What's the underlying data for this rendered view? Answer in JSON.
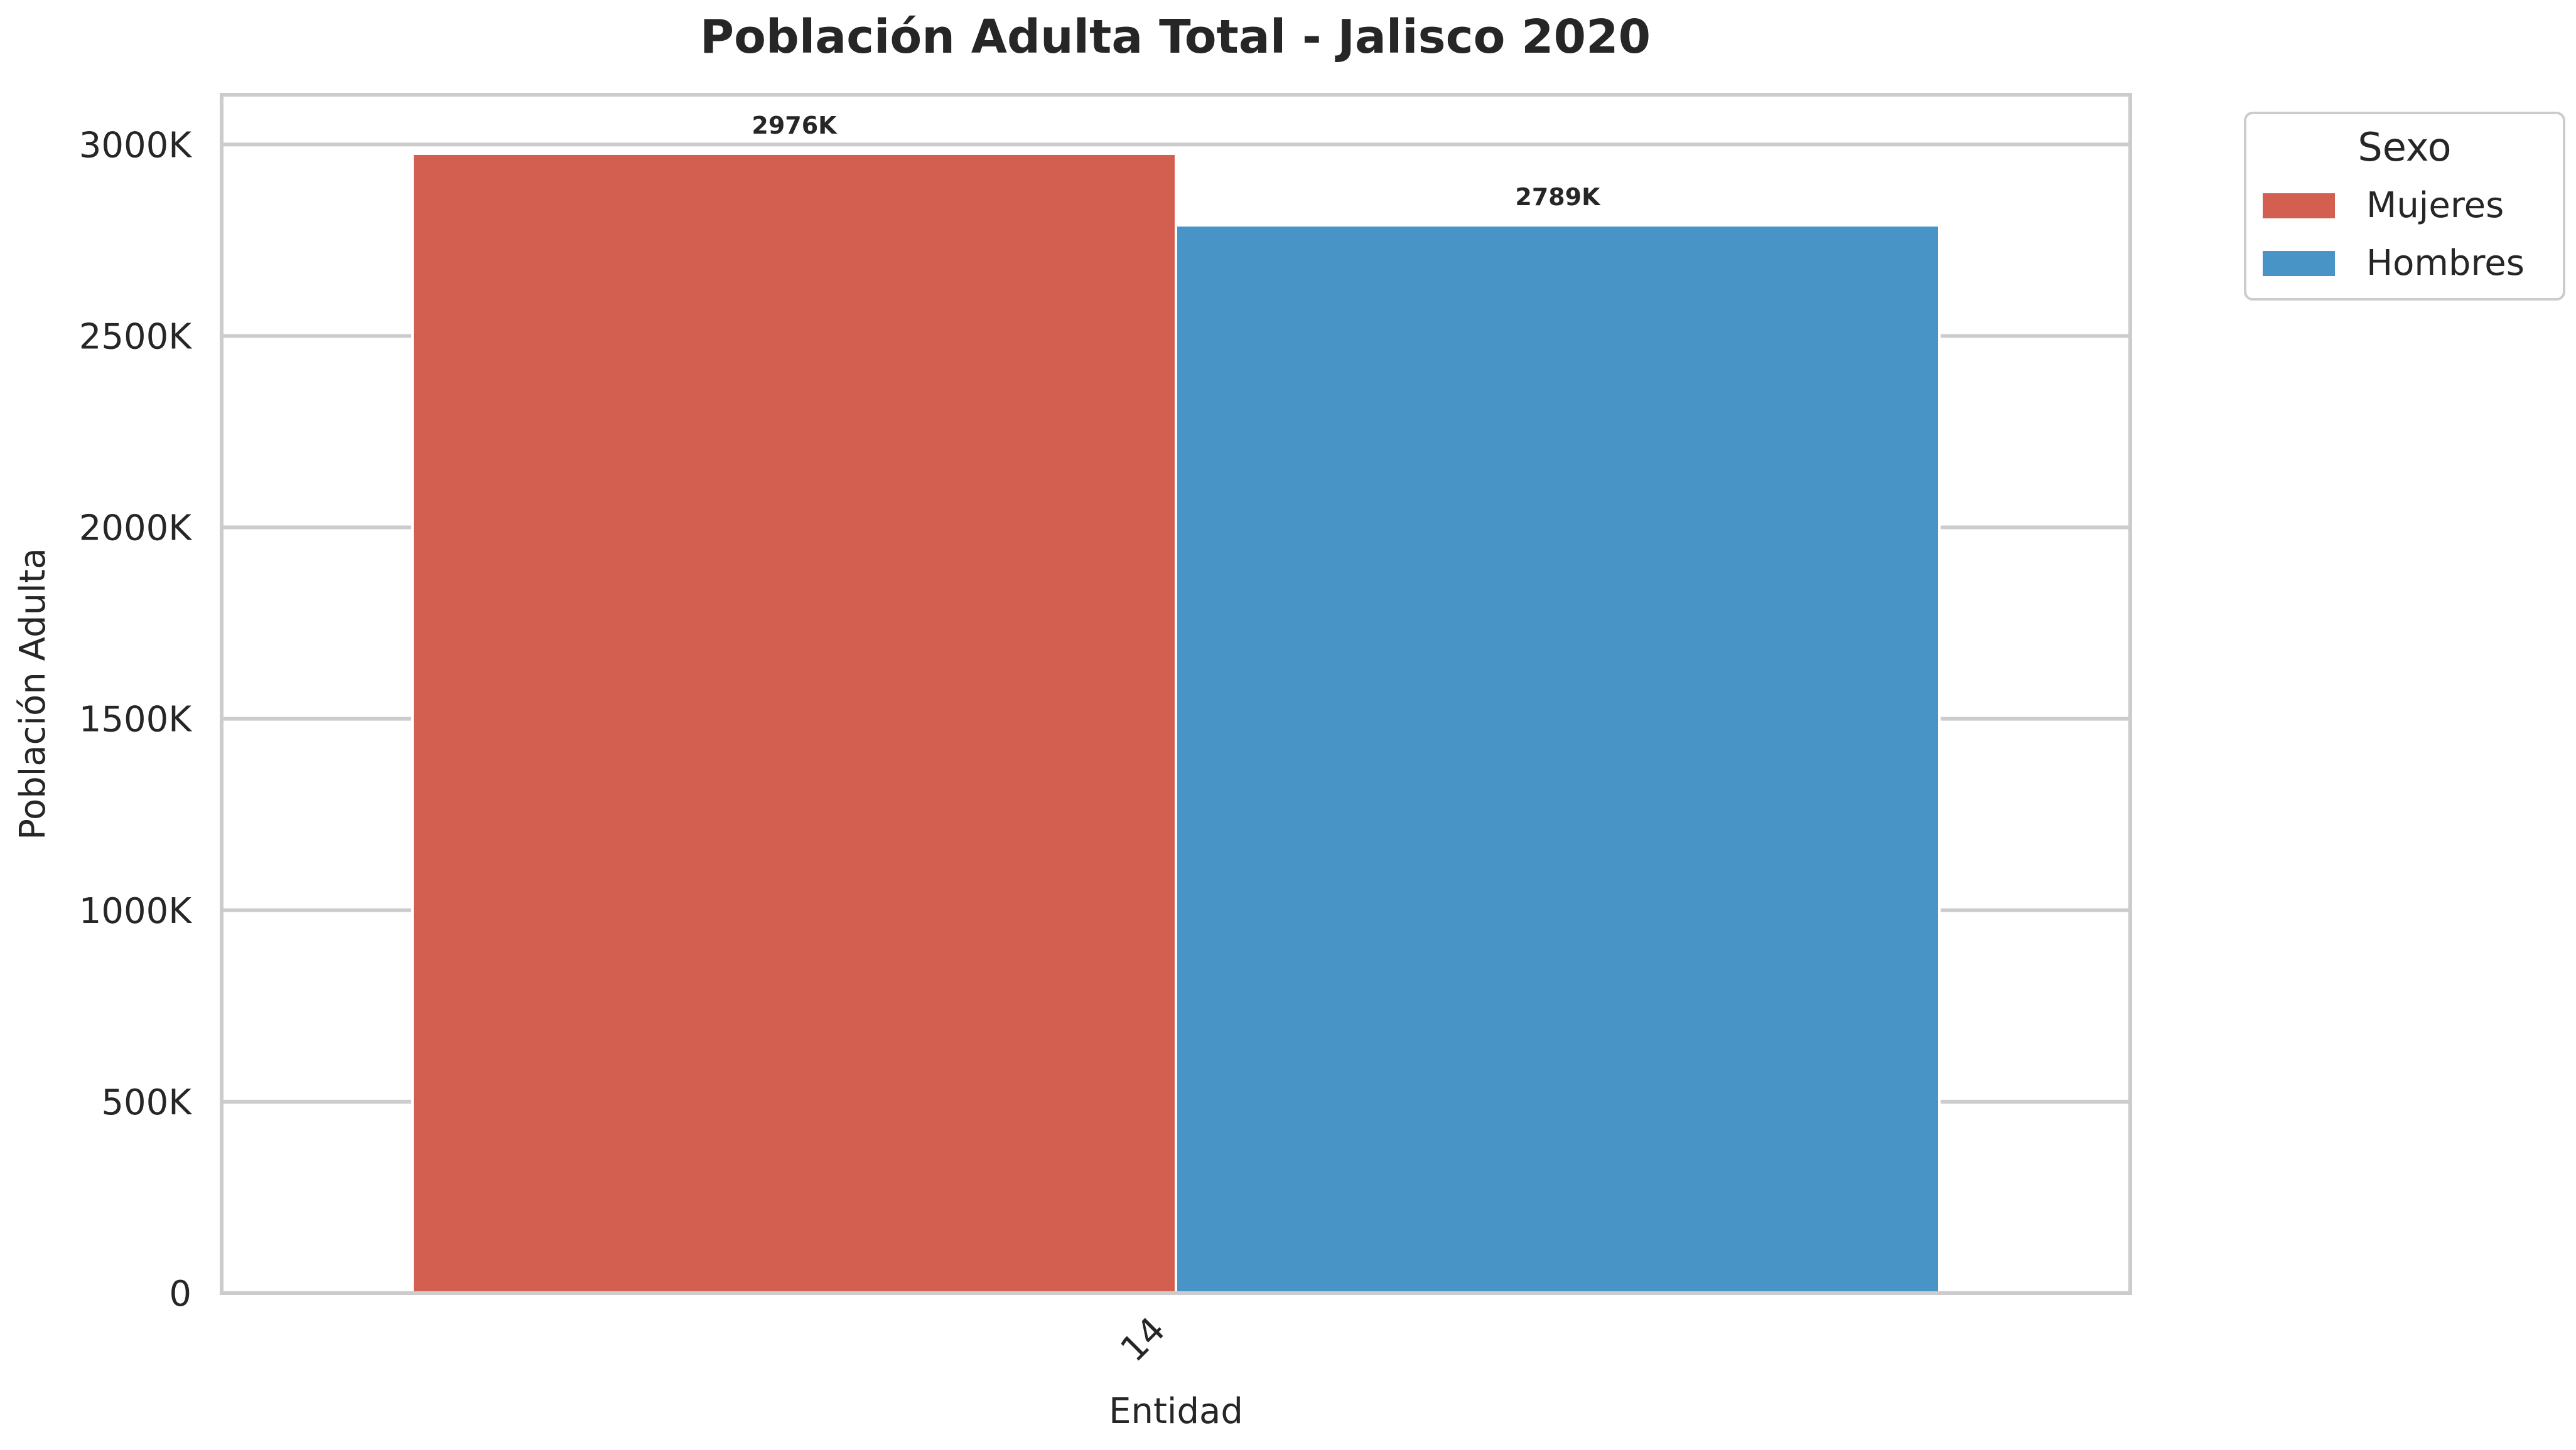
{
  "chart_data": {
    "type": "bar",
    "title": "Población Adulta Total - Jalisco 2020",
    "xlabel": "Entidad",
    "ylabel": "Población Adulta",
    "categories": [
      "14"
    ],
    "series": [
      {
        "name": "Mujeres",
        "values": [
          2976000
        ],
        "label": "2976K",
        "color": "#d35f50"
      },
      {
        "name": "Hombres",
        "values": [
          2789000
        ],
        "label": "2789K",
        "color": "#4994c6"
      }
    ],
    "ylim": [
      0,
      3130000
    ],
    "yticks": [
      0,
      500000,
      1000000,
      1500000,
      2000000,
      2500000,
      3000000
    ],
    "ytick_labels": [
      "0",
      "500K",
      "1000K",
      "1500K",
      "2000K",
      "2500K",
      "3000K"
    ],
    "grid": true,
    "legend": {
      "title": "Sexo",
      "placement": "outside-top-right"
    }
  }
}
